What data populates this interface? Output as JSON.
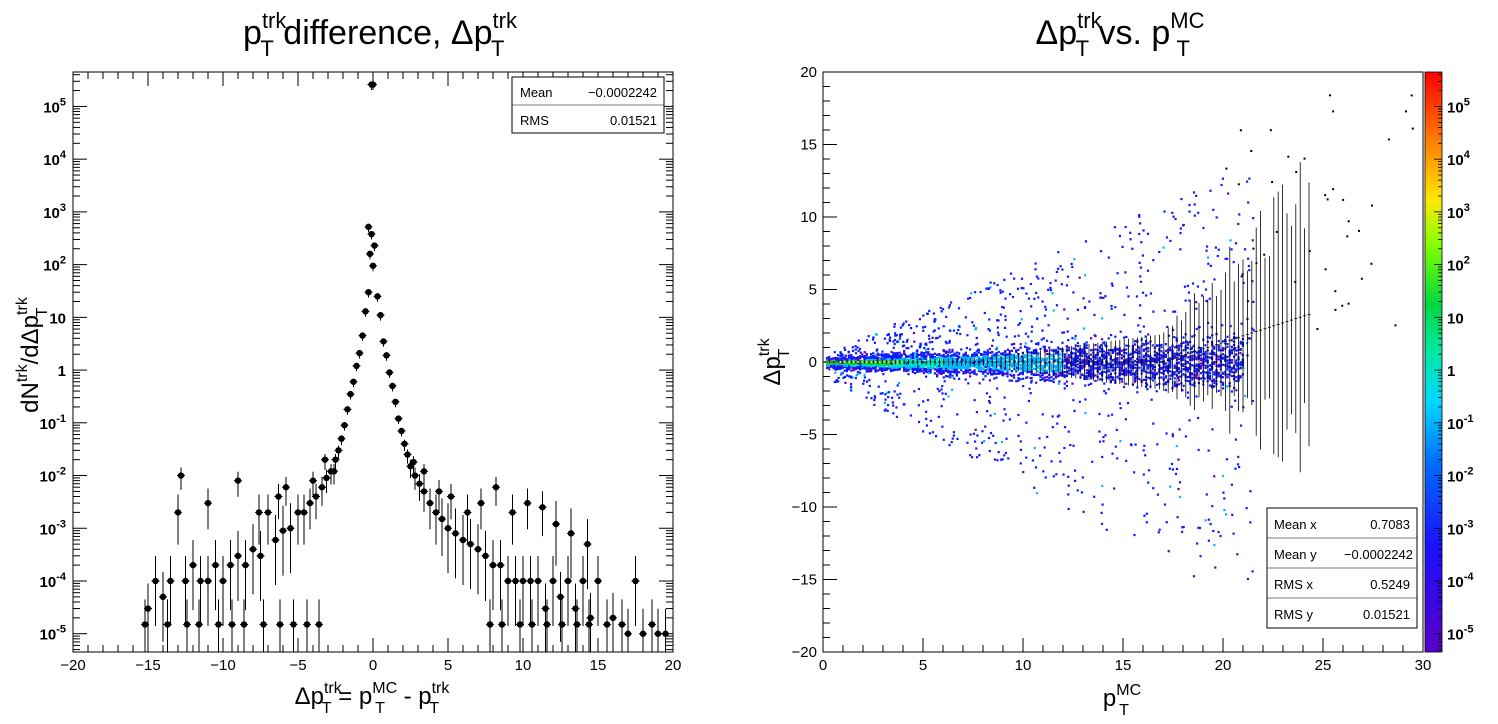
{
  "chart_data": [
    {
      "type": "scatter",
      "title": {
        "base": "p",
        "sup": "trk",
        "sub": "T",
        "text": " difference, Δp",
        "sup2": "trk",
        "sub2": "T"
      },
      "xlabel": {
        "a": "Δp",
        "a_sup": "trk",
        "a_sub": "T",
        "eq": " = p",
        "b_sup": "MC",
        "b_sub": "T",
        "minus": " - p",
        "c_sup": "trk",
        "c_sub": "T"
      },
      "ylabel": {
        "a": "dN",
        "a_sup": "trk",
        "b": "/dΔp",
        "b_sup": "trk",
        "b_sub": "T"
      },
      "xlim": [
        -20,
        20
      ],
      "ylim": [
        4.5e-06,
        450000
      ],
      "yscale": "log",
      "x_ticks": [
        "−20",
        "−15",
        "−10",
        "−5",
        "0",
        "5",
        "10",
        "15",
        "20"
      ],
      "y_ticks": [
        "10",
        "10",
        "10",
        "10",
        "10",
        "1",
        "10",
        "10",
        "10",
        "10",
        "10"
      ],
      "y_tick_exps": [
        "-5",
        "-4",
        "-3",
        "-2",
        "-1",
        "",
        "",
        "2",
        "3",
        "4",
        "5"
      ],
      "stats": {
        "mean_label": "Mean",
        "mean_value": "−0.0002242",
        "rms_label": "RMS",
        "rms_value": "0.01521"
      },
      "points": [
        [
          -0.1,
          260000
        ],
        [
          0,
          260000
        ],
        [
          -0.3,
          520
        ],
        [
          -0.1,
          380
        ],
        [
          0.1,
          230
        ],
        [
          -0.2,
          160
        ],
        [
          0.0,
          95
        ],
        [
          -0.3,
          30
        ],
        [
          0.3,
          25
        ],
        [
          -0.5,
          13
        ],
        [
          0.5,
          11
        ],
        [
          -0.7,
          4.5
        ],
        [
          0.7,
          3.5
        ],
        [
          -0.9,
          2.1
        ],
        [
          0.9,
          1.9
        ],
        [
          -1.1,
          1.2
        ],
        [
          1.1,
          0.9
        ],
        [
          -1.3,
          0.6
        ],
        [
          1.3,
          0.5
        ],
        [
          -1.5,
          0.35
        ],
        [
          1.5,
          0.25
        ],
        [
          -1.7,
          0.18
        ],
        [
          1.7,
          0.12
        ],
        [
          -1.9,
          0.09
        ],
        [
          1.9,
          0.07
        ],
        [
          -2.1,
          0.05
        ],
        [
          2.1,
          0.04
        ],
        [
          -2.3,
          0.03
        ],
        [
          2.3,
          0.025
        ],
        [
          -2.5,
          0.02
        ],
        [
          2.5,
          0.015
        ],
        [
          -2.8,
          0.012
        ],
        [
          2.8,
          0.01
        ],
        [
          -3.1,
          0.009
        ],
        [
          3.1,
          0.007
        ],
        [
          -3.4,
          0.006
        ],
        [
          3.4,
          0.005
        ],
        [
          -3.8,
          0.004
        ],
        [
          3.8,
          0.003
        ],
        [
          -4.2,
          0.003
        ],
        [
          4.2,
          0.002
        ],
        [
          -4.6,
          0.002
        ],
        [
          4.6,
          0.0015
        ],
        [
          -5.0,
          0.002
        ],
        [
          5.0,
          0.001
        ],
        [
          -5.5,
          0.001
        ],
        [
          5.5,
          0.0008
        ],
        [
          -6.0,
          0.0009
        ],
        [
          6.0,
          0.0006
        ],
        [
          -6.5,
          0.0006
        ],
        [
          6.5,
          0.0005
        ],
        [
          -7.0,
          0.002
        ],
        [
          7.0,
          0.0004
        ],
        [
          -7.5,
          0.0003
        ],
        [
          7.5,
          0.0003
        ],
        [
          -8.0,
          0.0004
        ],
        [
          8.0,
          0.0002
        ],
        [
          -8.5,
          0.0002
        ],
        [
          8.5,
          0.0002
        ],
        [
          -9.0,
          0.0003
        ],
        [
          9.0,
          0.0001
        ],
        [
          -9.5,
          0.0002
        ],
        [
          9.5,
          0.0001
        ],
        [
          -10.0,
          0.0001
        ],
        [
          10.0,
          0.0001
        ],
        [
          -10.5,
          0.0002
        ],
        [
          10.5,
          0.0001
        ],
        [
          -11.0,
          0.0001
        ],
        [
          11.0,
          0.0001
        ],
        [
          -11.5,
          0.0001
        ],
        [
          11.5,
          3e-05
        ],
        [
          -12.0,
          0.0002
        ],
        [
          12.0,
          0.0001
        ],
        [
          -12.5,
          0.0001
        ],
        [
          12.5,
          5e-05
        ],
        [
          -13.0,
          0.002
        ],
        [
          13.0,
          0.0001
        ],
        [
          -13.5,
          0.0001
        ],
        [
          13.5,
          3e-05
        ],
        [
          -14.0,
          5e-05
        ],
        [
          14.0,
          0.0001
        ],
        [
          -14.5,
          0.0001
        ],
        [
          14.5,
          2e-05
        ],
        [
          -15.0,
          3e-05
        ],
        [
          15.0,
          0.0001
        ],
        [
          -15.2,
          1.5e-05
        ],
        [
          16.0,
          2e-05
        ],
        [
          17.0,
          1e-05
        ],
        [
          17.5,
          0.0001
        ],
        [
          18.0,
          1e-05
        ],
        [
          19.0,
          1e-05
        ],
        [
          19.5,
          1e-05
        ],
        [
          -13.7,
          1.5e-05
        ],
        [
          -12.4,
          1.5e-05
        ],
        [
          -11.6,
          1.5e-05
        ],
        [
          -10.3,
          1.5e-05
        ],
        [
          -9.4,
          1.5e-05
        ],
        [
          -8.6,
          1.5e-05
        ],
        [
          -7.3,
          1.5e-05
        ],
        [
          -6.2,
          1.5e-05
        ],
        [
          -5.3,
          1.5e-05
        ],
        [
          -4.4,
          1.5e-05
        ],
        [
          -3.6,
          1.5e-05
        ],
        [
          7.8,
          1.5e-05
        ],
        [
          8.6,
          1.5e-05
        ],
        [
          9.8,
          1.5e-05
        ],
        [
          10.6,
          1.5e-05
        ],
        [
          11.6,
          1.5e-05
        ],
        [
          12.6,
          1.5e-05
        ],
        [
          13.6,
          1.5e-05
        ],
        [
          14.4,
          1.5e-05
        ],
        [
          15.6,
          1.5e-05
        ],
        [
          16.6,
          1.5e-05
        ],
        [
          18.6,
          1.5e-05
        ],
        [
          -12.8,
          0.01
        ],
        [
          -11.0,
          0.003
        ],
        [
          -9.0,
          0.008
        ],
        [
          -7.6,
          0.002
        ],
        [
          -6.3,
          0.004
        ],
        [
          -5.8,
          0.006
        ],
        [
          -4.0,
          0.008
        ],
        [
          -3.2,
          0.02
        ],
        [
          -2.6,
          0.012
        ],
        [
          2.7,
          0.018
        ],
        [
          3.4,
          0.012
        ],
        [
          4.4,
          0.005
        ],
        [
          5.2,
          0.004
        ],
        [
          6.3,
          0.002
        ],
        [
          7.2,
          0.003
        ],
        [
          8.2,
          0.006
        ],
        [
          9.3,
          0.002
        ],
        [
          10.3,
          0.003
        ],
        [
          11.3,
          0.0025
        ],
        [
          12.2,
          0.0012
        ],
        [
          13.2,
          0.0008
        ],
        [
          14.3,
          0.0005
        ]
      ]
    },
    {
      "type": "heatmap",
      "title": {
        "a": "Δp",
        "a_sup": "trk",
        "a_sub": "T",
        "mid": " vs. p",
        "b_sup": "MC",
        "b_sub": "T"
      },
      "xlabel": {
        "a": "p",
        "a_sup": "MC",
        "a_sub": "T"
      },
      "ylabel": {
        "a": "Δp",
        "a_sup": "trk",
        "a_sub": "T"
      },
      "xlim": [
        0,
        30
      ],
      "ylim": [
        -20,
        20
      ],
      "x_ticks": [
        "0",
        "5",
        "10",
        "15",
        "20",
        "25",
        "30"
      ],
      "y_ticks": [
        "−20",
        "−15",
        "−10",
        "−5",
        "0",
        "5",
        "10",
        "15",
        "20"
      ],
      "colorbar_ticks": [
        "10",
        "10",
        "10",
        "10",
        "10",
        "1",
        "10",
        "10",
        "10",
        "10",
        "10"
      ],
      "colorbar_exps": [
        "-5",
        "-4",
        "-3",
        "-2",
        "-1",
        "",
        "",
        "2",
        "3",
        "4",
        "5"
      ],
      "colorbar_range": [
        4.5e-06,
        450000
      ],
      "stats": {
        "mean_x_label": "Mean x",
        "mean_x_value": "0.7083",
        "mean_y_label": "Mean y",
        "mean_y_value": "−0.0002242",
        "rms_x_label": "RMS x",
        "rms_x_value": "0.5249",
        "rms_y_label": "RMS y",
        "rms_y_value": "0.01521"
      },
      "colors": {
        "palette": [
          "#5b00c8",
          "#0a1cff",
          "#00b8ff",
          "#00e8c0",
          "#00d84a",
          "#b8ff00",
          "#ffe000",
          "#ff8000",
          "#ff1000"
        ]
      }
    }
  ]
}
